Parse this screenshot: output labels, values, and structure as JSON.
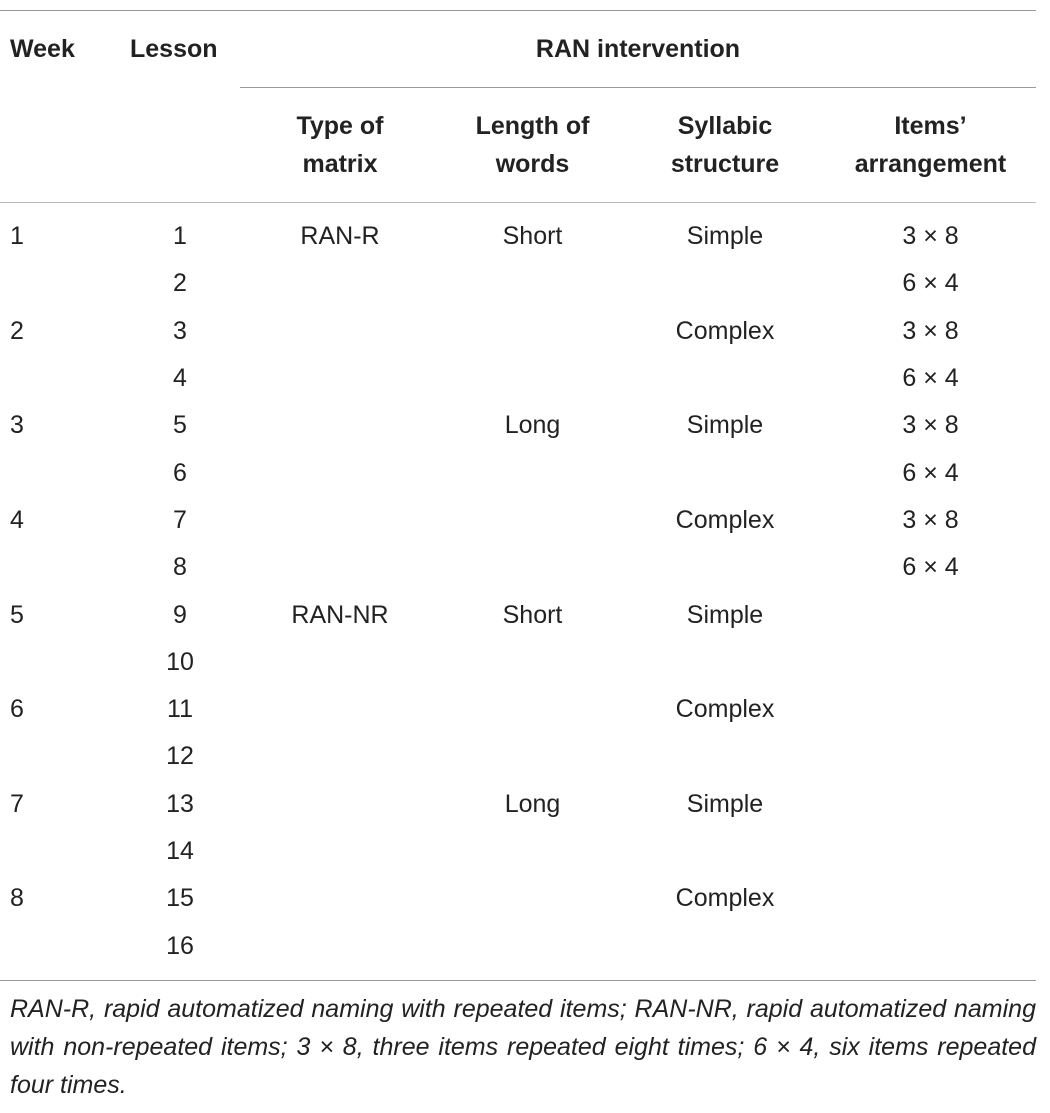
{
  "table": {
    "headers": {
      "week": "Week",
      "lesson": "Lesson",
      "group": "RAN intervention",
      "type_of_matrix": [
        "Type of",
        "matrix"
      ],
      "length_of_words": [
        "Length of",
        "words"
      ],
      "syllabic_structure": [
        "Syllabic",
        "structure"
      ],
      "items_arrangement": [
        "Items’",
        "arrangement"
      ]
    },
    "rows": [
      {
        "week": "1",
        "lesson": "1",
        "type": "RAN-R",
        "length": "Short",
        "syllabic": "Simple",
        "items": "3 × 8"
      },
      {
        "week": "",
        "lesson": "2",
        "type": "",
        "length": "",
        "syllabic": "",
        "items": "6 × 4"
      },
      {
        "week": "2",
        "lesson": "3",
        "type": "",
        "length": "",
        "syllabic": "Complex",
        "items": "3 × 8"
      },
      {
        "week": "",
        "lesson": "4",
        "type": "",
        "length": "",
        "syllabic": "",
        "items": "6 × 4"
      },
      {
        "week": "3",
        "lesson": "5",
        "type": "",
        "length": "Long",
        "syllabic": "Simple",
        "items": "3 × 8"
      },
      {
        "week": "",
        "lesson": "6",
        "type": "",
        "length": "",
        "syllabic": "",
        "items": "6 × 4"
      },
      {
        "week": "4",
        "lesson": "7",
        "type": "",
        "length": "",
        "syllabic": "Complex",
        "items": "3 × 8"
      },
      {
        "week": "",
        "lesson": "8",
        "type": "",
        "length": "",
        "syllabic": "",
        "items": "6 × 4"
      },
      {
        "week": "5",
        "lesson": "9",
        "type": "RAN-NR",
        "length": "Short",
        "syllabic": "Simple",
        "items": ""
      },
      {
        "week": "",
        "lesson": "10",
        "type": "",
        "length": "",
        "syllabic": "",
        "items": ""
      },
      {
        "week": "6",
        "lesson": "11",
        "type": "",
        "length": "",
        "syllabic": "Complex",
        "items": ""
      },
      {
        "week": "",
        "lesson": "12",
        "type": "",
        "length": "",
        "syllabic": "",
        "items": ""
      },
      {
        "week": "7",
        "lesson": "13",
        "type": "",
        "length": "Long",
        "syllabic": "Simple",
        "items": ""
      },
      {
        "week": "",
        "lesson": "14",
        "type": "",
        "length": "",
        "syllabic": "",
        "items": ""
      },
      {
        "week": "8",
        "lesson": "15",
        "type": "",
        "length": "",
        "syllabic": "Complex",
        "items": ""
      },
      {
        "week": "",
        "lesson": "16",
        "type": "",
        "length": "",
        "syllabic": "",
        "items": ""
      }
    ],
    "footnote": "RAN-R, rapid automatized naming with repeated items; RAN-NR, rapid automatized naming with non-repeated items; 3 × 8, three items repeated eight times; 6 × 4, six items repeated four times."
  }
}
